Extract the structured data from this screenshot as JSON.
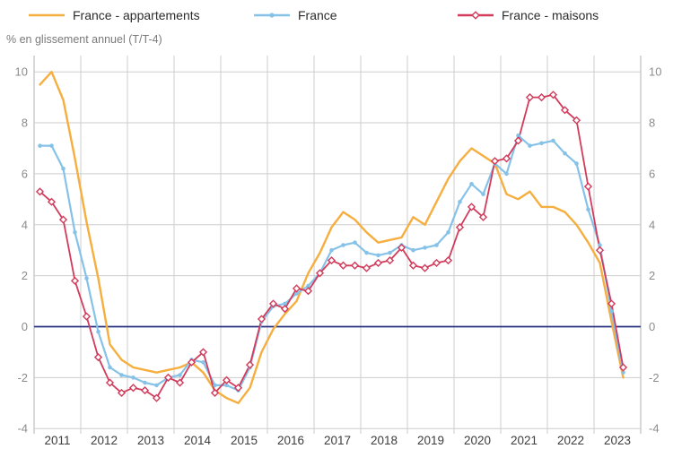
{
  "subtitle": "% en glissement annuel (T/T-4)",
  "legend": [
    {
      "label": "France - appartements",
      "color": "#F6AE3F",
      "marker": "none"
    },
    {
      "label": "France",
      "color": "#86C2E8",
      "marker": "dot"
    },
    {
      "label": "France - maisons",
      "color": "#D23B5B",
      "marker": "open-diamond"
    }
  ],
  "chart_data": {
    "type": "line",
    "title": "",
    "ylabel": "% en glissement annuel (T/T-4)",
    "xlabel": "",
    "x_frequency": "quarterly",
    "x_start": "2011-T1",
    "x_end": "2023-T3",
    "year_labels": [
      "2011",
      "2012",
      "2013",
      "2014",
      "2015",
      "2016",
      "2017",
      "2018",
      "2019",
      "2020",
      "2021",
      "2022",
      "2023"
    ],
    "yticks": [
      10,
      8,
      6,
      4,
      2,
      0,
      -2,
      -4
    ],
    "ylim": [
      -4,
      10
    ],
    "grid": true,
    "grid_color": "#CDCDCD",
    "axis_edge_color": "#B0B0B0",
    "zero_line_color": "#283380",
    "ytick_label_color": "#8C8C8C",
    "xtick_label_color": "#3D3D3D",
    "legend_position": "top",
    "categories": [
      "2011T1",
      "2011T2",
      "2011T3",
      "2011T4",
      "2012T1",
      "2012T2",
      "2012T3",
      "2012T4",
      "2013T1",
      "2013T2",
      "2013T3",
      "2013T4",
      "2014T1",
      "2014T2",
      "2014T3",
      "2014T4",
      "2015T1",
      "2015T2",
      "2015T3",
      "2015T4",
      "2016T1",
      "2016T2",
      "2016T3",
      "2016T4",
      "2017T1",
      "2017T2",
      "2017T3",
      "2017T4",
      "2018T1",
      "2018T2",
      "2018T3",
      "2018T4",
      "2019T1",
      "2019T2",
      "2019T3",
      "2019T4",
      "2020T1",
      "2020T2",
      "2020T3",
      "2020T4",
      "2021T1",
      "2021T2",
      "2021T3",
      "2021T4",
      "2022T1",
      "2022T2",
      "2022T3",
      "2022T4",
      "2023T1",
      "2023T2",
      "2023T3"
    ],
    "series": [
      {
        "name": "France - appartements",
        "color": "#F6AE3F",
        "marker": "none",
        "line_width": 2.4,
        "values": [
          9.5,
          10.0,
          8.9,
          6.6,
          4.1,
          1.9,
          -0.7,
          -1.3,
          -1.6,
          -1.7,
          -1.8,
          -1.7,
          -1.6,
          -1.4,
          -1.8,
          -2.5,
          -2.8,
          -3.0,
          -2.4,
          -1.0,
          -0.1,
          0.5,
          1.0,
          2.1,
          2.9,
          3.9,
          4.5,
          4.2,
          3.7,
          3.3,
          3.4,
          3.5,
          4.3,
          4.0,
          4.9,
          5.8,
          6.5,
          7.0,
          6.7,
          6.4,
          5.2,
          5.0,
          5.3,
          4.7,
          4.7,
          4.5,
          4.0,
          3.3,
          2.5,
          0.2,
          -2.0
        ]
      },
      {
        "name": "France",
        "color": "#86C2E8",
        "marker": "dot",
        "line_width": 2.2,
        "values": [
          7.1,
          7.1,
          6.2,
          3.7,
          1.9,
          -0.2,
          -1.6,
          -1.9,
          -2.0,
          -2.2,
          -2.3,
          -2.0,
          -1.9,
          -1.3,
          -1.4,
          -2.3,
          -2.3,
          -2.5,
          -1.6,
          0.2,
          0.8,
          0.9,
          1.3,
          1.6,
          2.1,
          3.0,
          3.2,
          3.3,
          2.9,
          2.8,
          2.9,
          3.2,
          3.0,
          3.1,
          3.2,
          3.7,
          4.9,
          5.6,
          5.2,
          6.4,
          6.0,
          7.5,
          7.1,
          7.2,
          7.3,
          6.8,
          6.4,
          4.6,
          3.2,
          0.6,
          -1.8
        ]
      },
      {
        "name": "France - maisons",
        "color": "#D23B5B",
        "marker": "open-diamond",
        "line_width": 1.8,
        "values": [
          5.3,
          4.9,
          4.2,
          1.8,
          0.4,
          -1.2,
          -2.2,
          -2.6,
          -2.4,
          -2.5,
          -2.8,
          -2.0,
          -2.2,
          -1.4,
          -1.0,
          -2.6,
          -2.1,
          -2.4,
          -1.5,
          0.3,
          0.9,
          0.7,
          1.5,
          1.4,
          2.1,
          2.6,
          2.4,
          2.4,
          2.3,
          2.5,
          2.6,
          3.1,
          2.4,
          2.3,
          2.5,
          2.6,
          3.9,
          4.7,
          4.3,
          6.5,
          6.6,
          7.3,
          9.0,
          9.0,
          9.1,
          8.5,
          8.1,
          5.5,
          3.0,
          0.9,
          -1.6
        ]
      }
    ]
  }
}
